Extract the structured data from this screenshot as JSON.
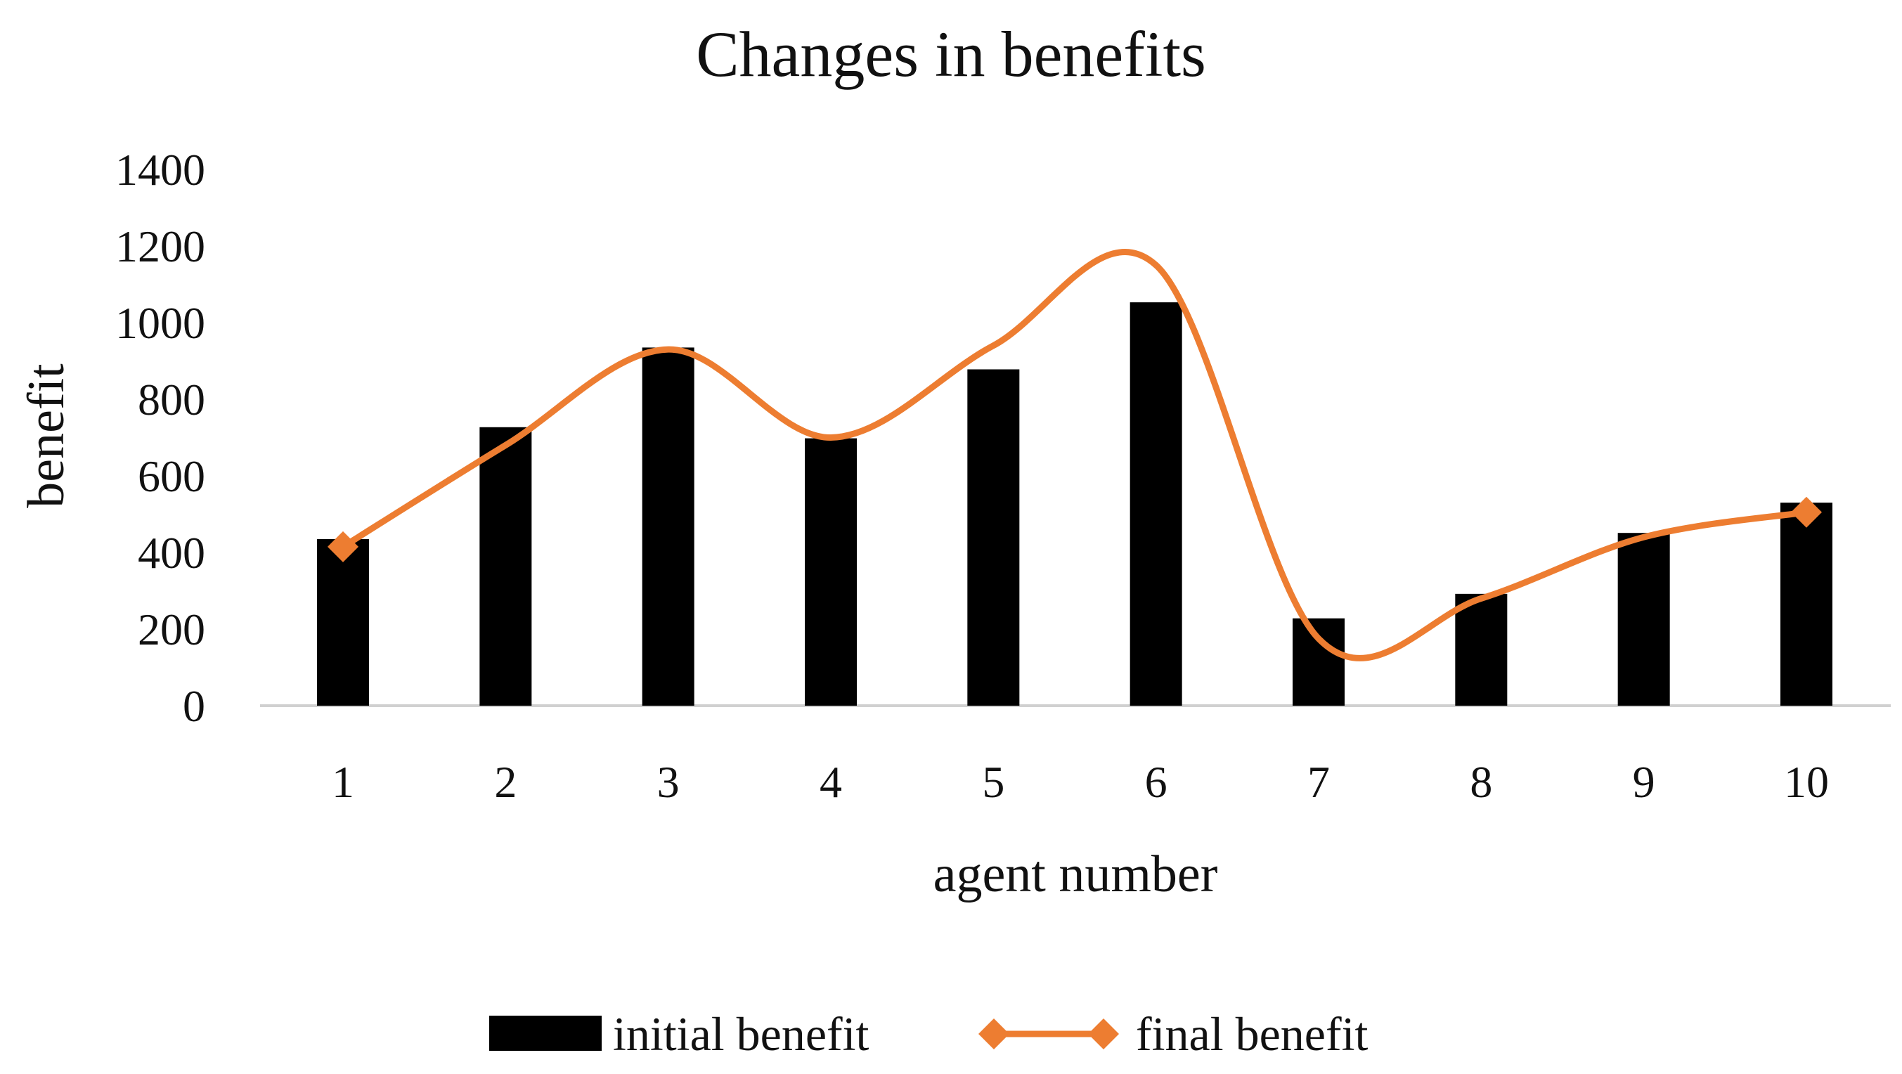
{
  "chart_data": {
    "type": "bar",
    "title": "Changes in benefits",
    "xlabel": "agent number",
    "ylabel": "benefit",
    "ylim": [
      0,
      1400
    ],
    "yticks": [
      "0",
      "200",
      "400",
      "600",
      "800",
      "1000",
      "1200",
      "1400"
    ],
    "categories": [
      "1",
      "2",
      "3",
      "4",
      "5",
      "6",
      "7",
      "8",
      "9",
      "10"
    ],
    "grid": false,
    "legend_position": "bottom",
    "series": [
      {
        "name": "initial benefit",
        "type": "bar",
        "color": "#000000",
        "values": [
          435,
          727,
          935,
          698,
          878,
          1053,
          228,
          292,
          451,
          530
        ]
      },
      {
        "name": "final benefit",
        "type": "line",
        "smooth": true,
        "marker": "diamond",
        "marker_on": [
          "first",
          "last"
        ],
        "color": "#ED7D31",
        "values": [
          415,
          680,
          930,
          700,
          940,
          1150,
          175,
          280,
          440,
          505
        ]
      }
    ]
  }
}
